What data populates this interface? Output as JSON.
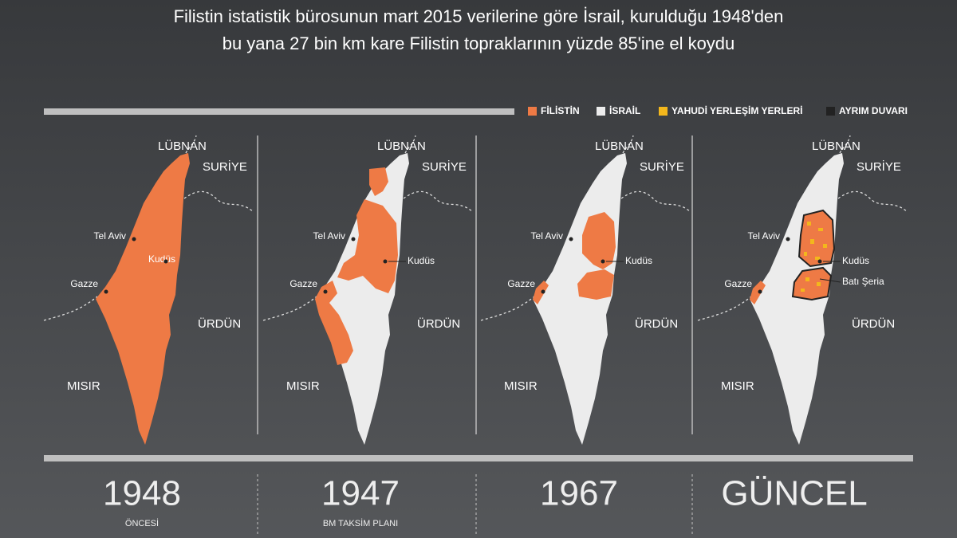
{
  "title": [
    "Filistin istatistik bürosunun mart 2015 verilerine göre İsrail, kurulduğu 1948'den",
    "bu yana 27 bin km kare Filistin topraklarının yüzde 85'ine el koydu"
  ],
  "legend": [
    {
      "label": "FİLİSTİN",
      "color": "#ee7a45"
    },
    {
      "label": "İSRAİL",
      "color": "#ececec"
    },
    {
      "label": "YAHUDİ YERLEŞİM YERLERİ",
      "color": "#f3b71c"
    },
    {
      "label": "AYRIM DUVARI",
      "color": "#222222"
    }
  ],
  "panels": [
    {
      "places": [
        "LÜBNAN",
        "SURİYE",
        "Tel Aviv",
        "Kudüs",
        "Gazze",
        "ÜRDÜN",
        "MISIR"
      ],
      "year": "1948",
      "subtitle": "ÖNCESİ"
    },
    {
      "places": [
        "LÜBNAN",
        "SURİYE",
        "Tel Aviv",
        "Kudüs",
        "Gazze",
        "ÜRDÜN",
        "MISIR"
      ],
      "year": "1947",
      "subtitle": "BM TAKSİM PLANI"
    },
    {
      "places": [
        "LÜBNAN",
        "SURİYE",
        "Tel Aviv",
        "Kudüs",
        "Gazze",
        "ÜRDÜN",
        "MISIR"
      ],
      "year": "1967"
    },
    {
      "places": [
        "LÜBNAN",
        "SURİYE",
        "Tel Aviv",
        "Kudüs",
        "Gazze",
        "Batı Şeria",
        "ÜRDÜN",
        "MISIR"
      ],
      "year": "GÜNCEL"
    }
  ]
}
